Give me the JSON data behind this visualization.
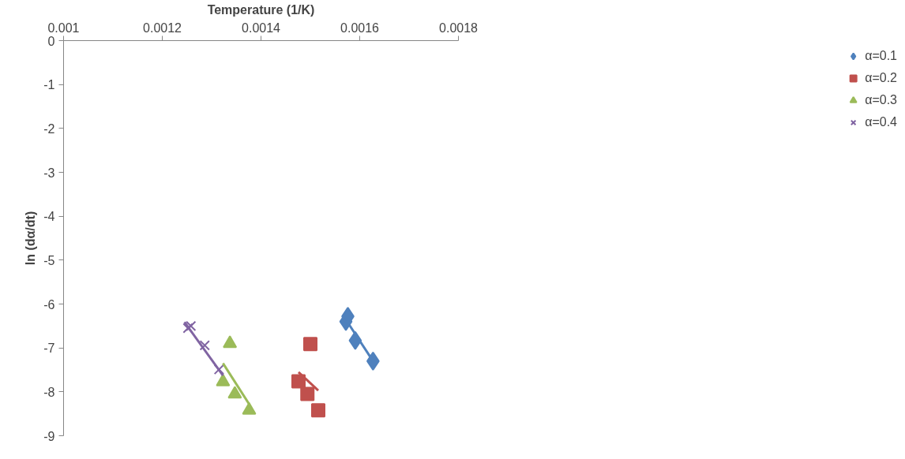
{
  "chart_data": {
    "type": "scatter",
    "xlabel": "Temperature (1/K)",
    "ylabel": "ln (dα/dt)",
    "xlim": [
      0.001,
      0.0018
    ],
    "xticks": [
      0.001,
      0.0012,
      0.0014,
      0.0016,
      0.0018
    ],
    "ylim": [
      -9,
      0
    ],
    "yticks": [
      0,
      -1,
      -2,
      -3,
      -4,
      -5,
      -6,
      -7,
      -8,
      -9
    ],
    "grid": false,
    "legend": "right",
    "series": [
      {
        "name": "α=0.1",
        "color": "#4f81bd",
        "marker": "diamond",
        "x": [
          0.001572,
          0.001576,
          0.001591,
          0.001627
        ],
        "values": [
          -6.4,
          -6.28,
          -6.83,
          -7.3
        ]
      },
      {
        "name": "α=0.2",
        "color": "#c0504d",
        "marker": "square",
        "x": [
          0.0015,
          0.001476,
          0.001494,
          0.001516
        ],
        "values": [
          -6.91,
          -7.76,
          -8.05,
          -8.42
        ]
      },
      {
        "name": "α=0.3",
        "color": "#9bbb59",
        "marker": "triangle",
        "x": [
          0.001337,
          0.001323,
          0.001347,
          0.001376
        ],
        "values": [
          -6.9,
          -7.77,
          -8.05,
          -8.42
        ]
      },
      {
        "name": "α=0.4",
        "color": "#8064a2",
        "marker": "cross",
        "x": [
          0.001252,
          0.001258,
          0.001286,
          0.001315
        ],
        "values": [
          -6.55,
          -6.5,
          -6.94,
          -7.49
        ]
      },
      {
        "type": "line",
        "color": "#4f81bd",
        "x": [
          0.001574,
          0.001627
        ],
        "values": [
          -6.39,
          -7.3
        ]
      },
      {
        "type": "line",
        "color": "#c0504d",
        "x": [
          0.001476,
          0.001516
        ],
        "values": [
          -7.55,
          -7.97
        ]
      },
      {
        "type": "line",
        "color": "#9bbb59",
        "x": [
          0.001323,
          0.001376
        ],
        "values": [
          -7.35,
          -8.28
        ]
      },
      {
        "type": "line",
        "color": "#8064a2",
        "x": [
          0.001245,
          0.001323
        ],
        "values": [
          -6.41,
          -7.63
        ]
      }
    ]
  }
}
